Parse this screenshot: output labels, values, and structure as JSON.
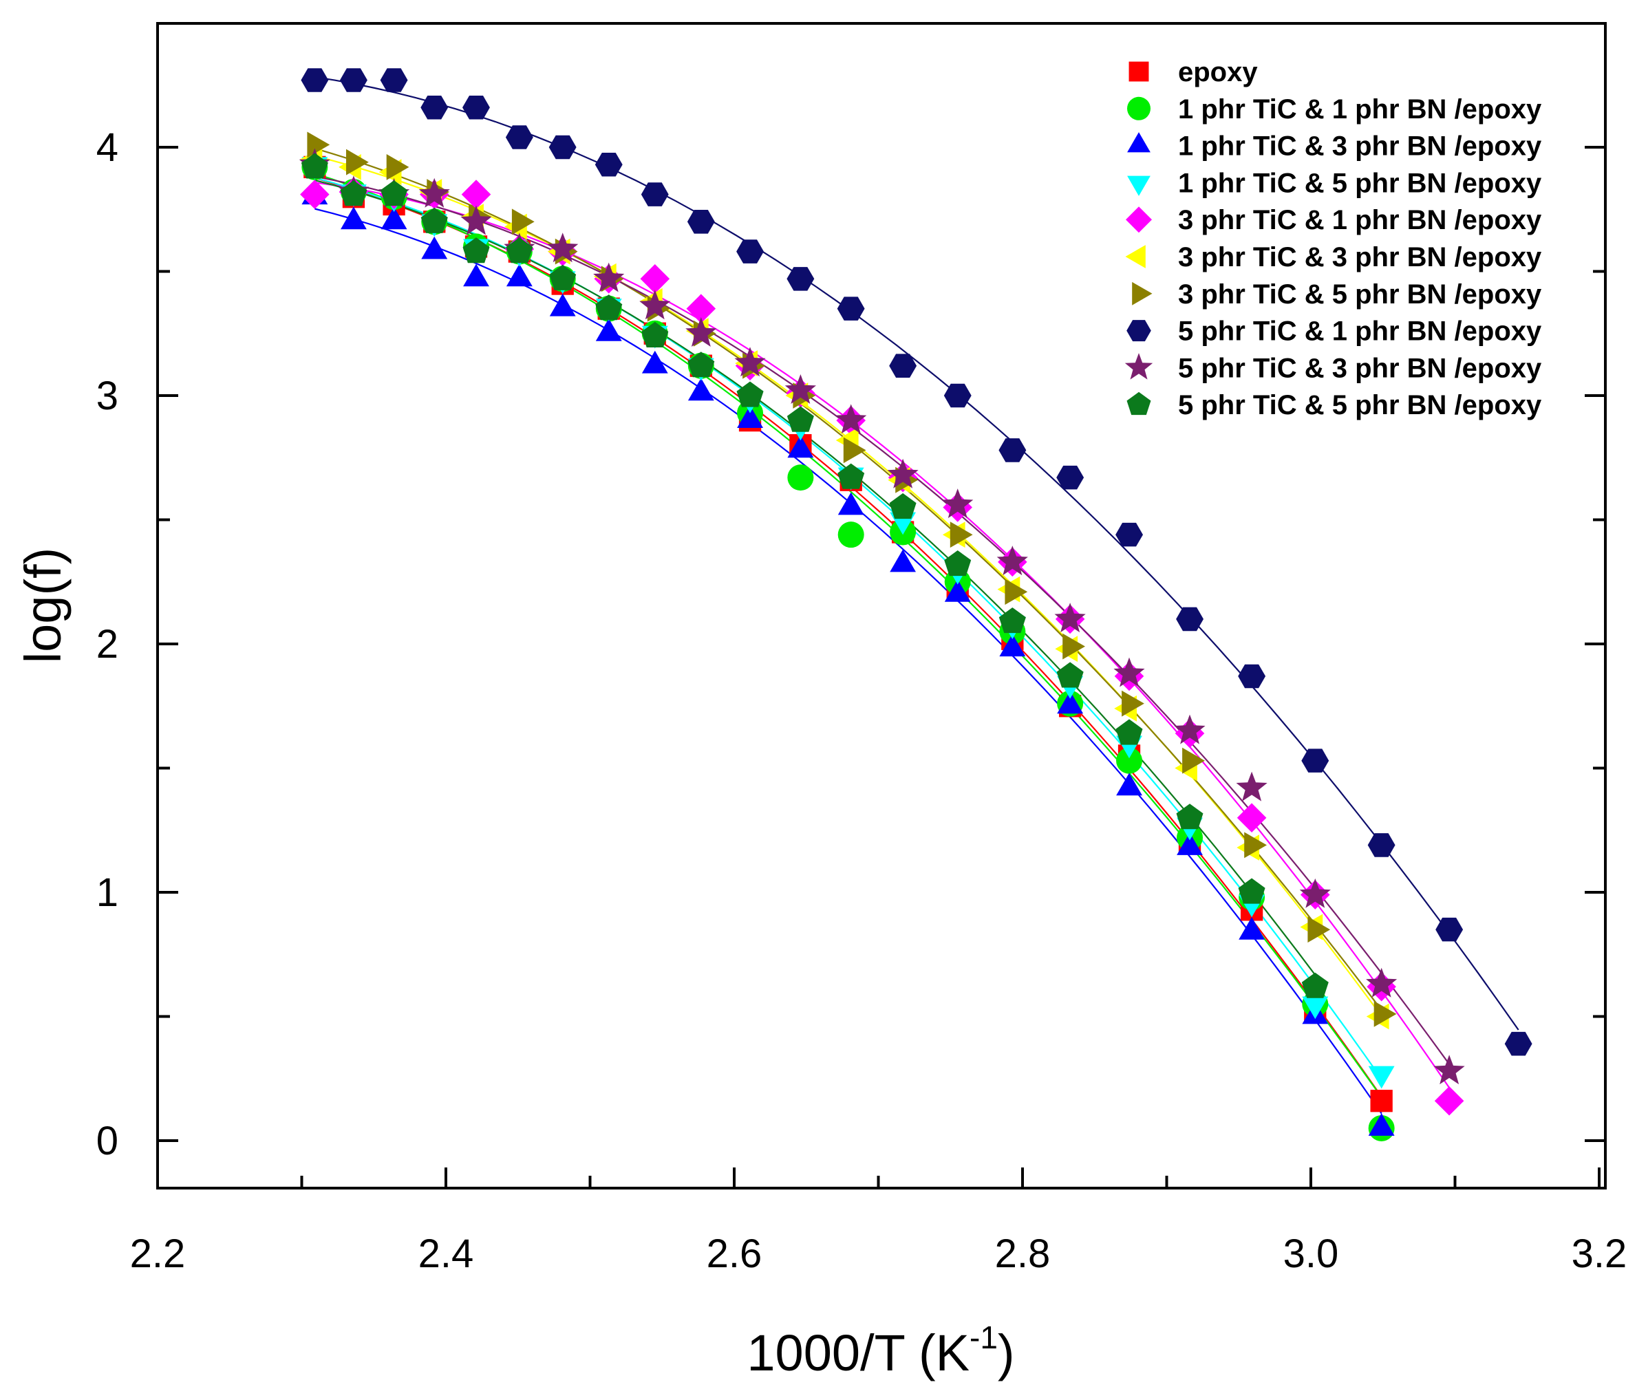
{
  "chart_data": {
    "type": "scatter",
    "title": "",
    "xlabel": "1000/T (K",
    "xlabel_sup": "-1",
    "xlabel_close": ")",
    "ylabel": "log(f)",
    "xlim": [
      2.2,
      3.3
    ],
    "ylim": [
      -0.2,
      4.5
    ],
    "xticks": [
      2.2,
      2.4,
      2.6,
      2.8,
      3.0,
      3.2
    ],
    "xtick_labels": [
      "2.2",
      "2.4",
      "2.6",
      "2.8",
      "3.0",
      "3.2"
    ],
    "yticks": [
      0,
      1,
      2,
      3,
      4
    ],
    "ytick_labels": [
      "0",
      "1",
      "2",
      "3",
      "4"
    ],
    "grid": false,
    "legend_position": "top-right",
    "series": [
      {
        "name": "epoxy",
        "marker": "square",
        "color": "#ff0000",
        "x": [
          2.309,
          2.336,
          2.364,
          2.392,
          2.421,
          2.451,
          2.481,
          2.513,
          2.545,
          2.577,
          2.611,
          2.646,
          2.681,
          2.717,
          2.755,
          2.793,
          2.833,
          2.874,
          2.916,
          2.959,
          3.003,
          3.049
        ],
        "y": [
          3.92,
          3.8,
          3.77,
          3.7,
          3.6,
          3.58,
          3.45,
          3.35,
          3.25,
          3.12,
          2.9,
          2.8,
          2.66,
          2.45,
          2.22,
          2.02,
          1.75,
          1.55,
          1.2,
          0.93,
          0.52,
          0.16
        ]
      },
      {
        "name": "1 phr TiC & 1 phr BN /epoxy",
        "marker": "circle",
        "color": "#00ee00",
        "x": [
          2.309,
          2.336,
          2.364,
          2.392,
          2.421,
          2.451,
          2.481,
          2.513,
          2.545,
          2.577,
          2.611,
          2.646,
          2.681,
          2.717,
          2.755,
          2.793,
          2.833,
          2.874,
          2.916,
          2.959,
          3.003,
          3.049
        ],
        "y": [
          3.92,
          3.82,
          3.8,
          3.7,
          3.6,
          3.58,
          3.47,
          3.35,
          3.25,
          3.12,
          2.93,
          2.67,
          2.44,
          2.45,
          2.25,
          2.05,
          1.76,
          1.53,
          1.22,
          0.98,
          0.55,
          0.05
        ]
      },
      {
        "name": "1 phr TiC & 3 phr BN /epoxy",
        "marker": "triangle-up",
        "color": "#0000ff",
        "x": [
          2.309,
          2.336,
          2.364,
          2.392,
          2.421,
          2.451,
          2.481,
          2.513,
          2.545,
          2.577,
          2.611,
          2.646,
          2.681,
          2.717,
          2.755,
          2.793,
          2.833,
          2.874,
          2.916,
          2.959,
          3.003,
          3.049
        ],
        "y": [
          3.8,
          3.7,
          3.7,
          3.58,
          3.47,
          3.47,
          3.35,
          3.25,
          3.12,
          3.01,
          2.9,
          2.78,
          2.55,
          2.32,
          2.2,
          1.98,
          1.75,
          1.42,
          1.18,
          0.84,
          0.5,
          0.05
        ]
      },
      {
        "name": "1 phr TiC & 5 phr BN /epoxy",
        "marker": "triangle-down",
        "color": "#00ffff",
        "x": [
          2.309,
          2.336,
          2.364,
          2.392,
          2.421,
          2.451,
          2.481,
          2.513,
          2.545,
          2.577,
          2.611,
          2.646,
          2.681,
          2.717,
          2.755,
          2.793,
          2.833,
          2.874,
          2.916,
          2.959,
          3.003,
          3.049
        ],
        "y": [
          3.93,
          3.82,
          3.8,
          3.7,
          3.6,
          3.58,
          3.47,
          3.36,
          3.25,
          3.12,
          2.99,
          2.88,
          2.68,
          2.5,
          2.3,
          2.08,
          1.84,
          1.6,
          1.27,
          0.96,
          0.55,
          0.27
        ]
      },
      {
        "name": "3 phr TiC & 1 phr BN /epoxy",
        "marker": "diamond",
        "color": "#ff00ff",
        "x": [
          2.309,
          2.336,
          2.364,
          2.392,
          2.421,
          2.451,
          2.481,
          2.513,
          2.545,
          2.577,
          2.611,
          2.646,
          2.681,
          2.717,
          2.755,
          2.793,
          2.833,
          2.874,
          2.916,
          2.959,
          3.003,
          3.049,
          3.096
        ],
        "y": [
          3.81,
          3.82,
          3.81,
          3.81,
          3.81,
          3.59,
          3.58,
          3.47,
          3.47,
          3.35,
          3.12,
          3.01,
          2.9,
          2.67,
          2.55,
          2.33,
          2.1,
          1.87,
          1.64,
          1.3,
          0.99,
          0.62,
          0.16
        ]
      },
      {
        "name": "3 phr TiC & 3 phr BN /epoxy",
        "marker": "triangle-left",
        "color": "#ffff00",
        "x": [
          2.309,
          2.336,
          2.364,
          2.392,
          2.421,
          2.451,
          2.481,
          2.513,
          2.545,
          2.577,
          2.611,
          2.646,
          2.681,
          2.717,
          2.755,
          2.793,
          2.833,
          2.874,
          2.916,
          2.959,
          3.003,
          3.049
        ],
        "y": [
          3.95,
          3.92,
          3.9,
          3.82,
          3.72,
          3.68,
          3.58,
          3.48,
          3.38,
          3.26,
          3.13,
          3.0,
          2.82,
          2.66,
          2.44,
          2.22,
          1.98,
          1.74,
          1.5,
          1.18,
          0.86,
          0.5
        ]
      },
      {
        "name": "3 phr TiC & 5 phr BN /epoxy",
        "marker": "triangle-right",
        "color": "#8b8000",
        "x": [
          2.309,
          2.336,
          2.364,
          2.392,
          2.421,
          2.451,
          2.481,
          2.513,
          2.545,
          2.577,
          2.611,
          2.646,
          2.681,
          2.717,
          2.755,
          2.793,
          2.833,
          2.874,
          2.916,
          2.959,
          3.003,
          3.049
        ],
        "y": [
          4.01,
          3.94,
          3.92,
          3.82,
          3.72,
          3.7,
          3.58,
          3.47,
          3.35,
          3.25,
          3.12,
          3.0,
          2.78,
          2.66,
          2.44,
          2.21,
          1.99,
          1.76,
          1.53,
          1.19,
          0.85,
          0.51
        ]
      },
      {
        "name": "5 phr TiC & 1 phr BN /epoxy",
        "marker": "hexagon",
        "color": "#0d0d6b",
        "x": [
          2.309,
          2.336,
          2.364,
          2.392,
          2.421,
          2.451,
          2.481,
          2.513,
          2.545,
          2.577,
          2.611,
          2.646,
          2.681,
          2.717,
          2.755,
          2.793,
          2.833,
          2.874,
          2.916,
          2.959,
          3.003,
          3.049,
          3.096,
          3.144
        ],
        "y": [
          4.27,
          4.27,
          4.27,
          4.16,
          4.16,
          4.04,
          4.0,
          3.93,
          3.81,
          3.7,
          3.58,
          3.47,
          3.35,
          3.12,
          3.0,
          2.78,
          2.67,
          2.44,
          2.1,
          1.87,
          1.53,
          1.19,
          0.85,
          0.39
        ]
      },
      {
        "name": "5 phr TiC & 3 phr BN /epoxy",
        "marker": "star",
        "color": "#7a1e6e",
        "x": [
          2.309,
          2.336,
          2.364,
          2.392,
          2.421,
          2.451,
          2.481,
          2.513,
          2.545,
          2.577,
          2.611,
          2.646,
          2.681,
          2.717,
          2.755,
          2.793,
          2.833,
          2.874,
          2.916,
          2.959,
          3.003,
          3.049,
          3.096
        ],
        "y": [
          3.93,
          3.82,
          3.81,
          3.81,
          3.7,
          3.59,
          3.59,
          3.47,
          3.36,
          3.25,
          3.13,
          3.02,
          2.9,
          2.68,
          2.56,
          2.33,
          2.1,
          1.88,
          1.65,
          1.42,
          0.99,
          0.63,
          0.28
        ]
      },
      {
        "name": "5 phr TiC & 5 phr BN /epoxy",
        "marker": "pentagon",
        "color": "#0b7a1c",
        "x": [
          2.309,
          2.336,
          2.364,
          2.392,
          2.421,
          2.451,
          2.481,
          2.513,
          2.545,
          2.577,
          2.611,
          2.646,
          2.681,
          2.717,
          2.755,
          2.793,
          2.833,
          2.874,
          2.916,
          2.959,
          3.003
        ],
        "y": [
          3.92,
          3.81,
          3.81,
          3.7,
          3.58,
          3.58,
          3.47,
          3.35,
          3.24,
          3.12,
          3.0,
          2.9,
          2.67,
          2.55,
          2.32,
          2.09,
          1.87,
          1.64,
          1.3,
          1.0,
          0.62
        ]
      }
    ]
  }
}
